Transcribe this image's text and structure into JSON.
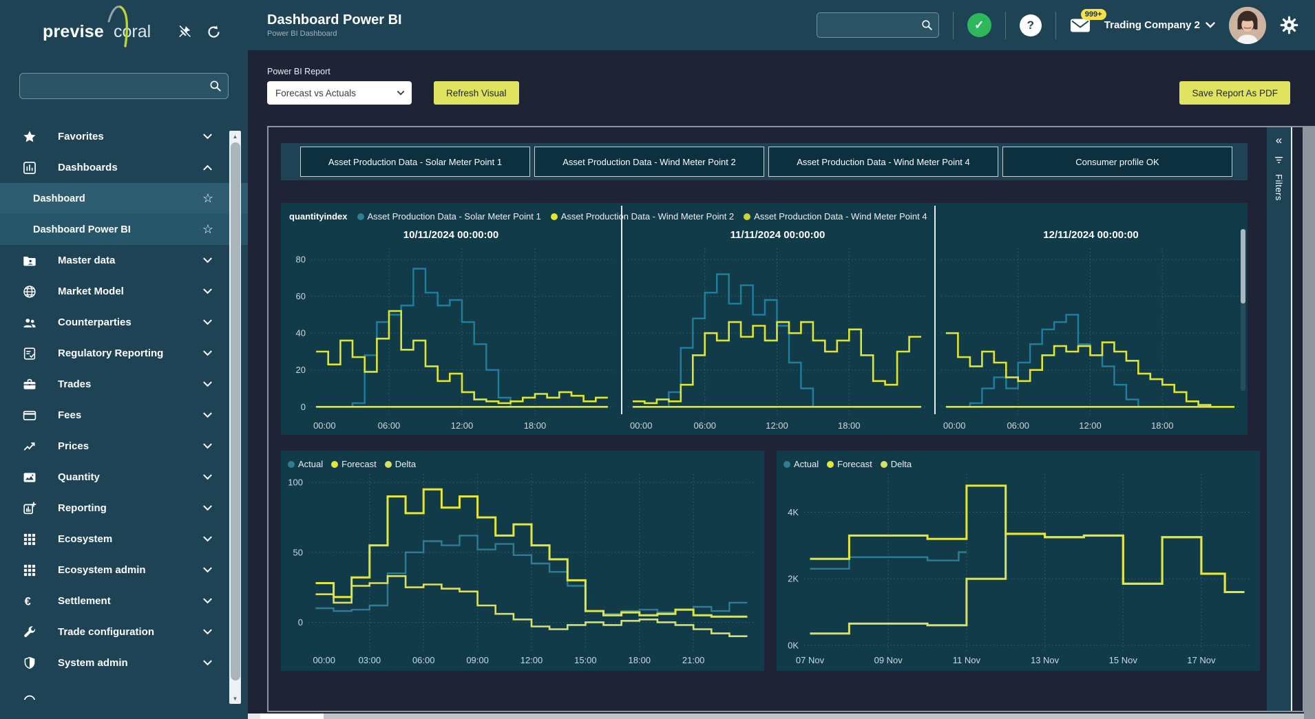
{
  "app": {
    "logo_text_1": "previse",
    "logo_text_2": "coral"
  },
  "header": {
    "title": "Dashboard Power BI",
    "subtitle": "Power BI Dashboard",
    "search_value": "",
    "company_selector": "Trading Company 2",
    "mail_badge": "999+"
  },
  "sidebar": {
    "search_value": "",
    "items": [
      {
        "label": "Favorites",
        "icon": "star",
        "state": "collapsed"
      },
      {
        "label": "Dashboards",
        "icon": "bar-chart",
        "state": "expanded"
      },
      {
        "label": "Dashboard",
        "type": "sub",
        "selected": true
      },
      {
        "label": "Dashboard Power BI",
        "type": "sub",
        "active": true
      },
      {
        "label": "Master data",
        "icon": "folder-user",
        "state": "collapsed"
      },
      {
        "label": "Market Model",
        "icon": "globe",
        "state": "collapsed"
      },
      {
        "label": "Counterparties",
        "icon": "people",
        "state": "collapsed"
      },
      {
        "label": "Regulatory Reporting",
        "icon": "doc-check",
        "state": "collapsed"
      },
      {
        "label": "Trades",
        "icon": "briefcase",
        "state": "collapsed"
      },
      {
        "label": "Fees",
        "icon": "credit-card",
        "state": "collapsed"
      },
      {
        "label": "Prices",
        "icon": "trend",
        "state": "collapsed"
      },
      {
        "label": "Quantity",
        "icon": "image-chart",
        "state": "collapsed"
      },
      {
        "label": "Reporting",
        "icon": "chart-plus",
        "state": "collapsed"
      },
      {
        "label": "Ecosystem",
        "icon": "grid",
        "state": "collapsed"
      },
      {
        "label": "Ecosystem admin",
        "icon": "grid",
        "state": "collapsed"
      },
      {
        "label": "Settlement",
        "icon": "euro",
        "state": "collapsed"
      },
      {
        "label": "Trade configuration",
        "icon": "wrench",
        "state": "collapsed"
      },
      {
        "label": "System admin",
        "icon": "shield",
        "state": "collapsed"
      }
    ]
  },
  "controls": {
    "report_picker_label": "Power BI Report",
    "report_picker_value": "Forecast vs Actuals",
    "refresh_button": "Refresh Visual",
    "save_pdf_button": "Save Report As PDF"
  },
  "report": {
    "tabs": [
      "Asset Production Data - Solar Meter Point 1",
      "Asset Production Data - Wind Meter Point 2",
      "Asset Production Data - Wind Meter Point 4",
      "Consumer profile OK"
    ],
    "filters_label": "Filters"
  },
  "chart_data": [
    {
      "type": "line",
      "name": "quantityindex",
      "legend": [
        {
          "label": "Asset Production Data - Solar Meter Point 1",
          "color": "#2e7d95"
        },
        {
          "label": "Asset Production Data - Wind Meter Point 2",
          "color": "#e0e52e"
        },
        {
          "label": "Asset Production Data - Wind Meter Point 4",
          "color": "#ccd335"
        }
      ],
      "ylim": [
        0,
        80
      ],
      "yticks": [
        0,
        20,
        40,
        60,
        80
      ],
      "xticks": [
        {
          "v": 0,
          "t": "00:00"
        },
        {
          "v": 6,
          "t": "06:00"
        },
        {
          "v": 12,
          "t": "12:00"
        },
        {
          "v": 18,
          "t": "18:00"
        }
      ],
      "panels": [
        {
          "title": "10/11/2024 00:00:00",
          "series": {
            "solar_meter_point_1": [
              0,
              0,
              0,
              2,
              28,
              46,
              50,
              55,
              75,
              62,
              55,
              58,
              46,
              34,
              20,
              5,
              0,
              0,
              0,
              0,
              0,
              0,
              0,
              0
            ],
            "wind_meter_point_2": [
              30,
              23,
              36,
              27,
              19,
              37,
              52,
              31,
              36,
              22,
              14,
              18,
              8,
              4,
              3,
              2,
              3,
              5,
              7,
              5,
              8,
              6,
              3,
              5
            ],
            "wind_meter_point_4": [
              0,
              0,
              0,
              0,
              0,
              0,
              0,
              0,
              0,
              0,
              0,
              0,
              0,
              0,
              0,
              0,
              0,
              0,
              0,
              0,
              0,
              0,
              0,
              0
            ]
          }
        },
        {
          "title": "11/11/2024 00:00:00",
          "series": {
            "solar_meter_point_1": [
              0,
              0,
              0,
              8,
              32,
              48,
              62,
              72,
              56,
              66,
              50,
              58,
              44,
              24,
              10,
              0,
              0,
              0,
              0,
              0,
              0,
              0,
              0,
              0
            ],
            "wind_meter_point_2": [
              3,
              2,
              4,
              3,
              12,
              28,
              40,
              36,
              46,
              38,
              44,
              36,
              46,
              40,
              46,
              36,
              30,
              36,
              42,
              28,
              14,
              12,
              30,
              38
            ],
            "wind_meter_point_4": [
              0,
              0,
              0,
              0,
              0,
              0,
              0,
              0,
              0,
              0,
              0,
              0,
              0,
              0,
              0,
              0,
              0,
              0,
              0,
              0,
              0,
              0,
              0,
              0
            ]
          }
        },
        {
          "title": "12/11/2024 00:00:00",
          "series": {
            "solar_meter_point_1": [
              0,
              0,
              2,
              10,
              16,
              10,
              24,
              34,
              42,
              46,
              50,
              34,
              28,
              22,
              12,
              4,
              0,
              0,
              0,
              0,
              0,
              0,
              0,
              0
            ],
            "wind_meter_point_2": [
              40,
              27,
              22,
              30,
              24,
              16,
              14,
              20,
              28,
              33,
              30,
              33,
              28,
              35,
              30,
              25,
              18,
              15,
              12,
              8,
              3,
              1,
              0,
              0
            ],
            "wind_meter_point_4": [
              0,
              0,
              0,
              0,
              0,
              0,
              0,
              0,
              0,
              0,
              0,
              0,
              0,
              0,
              0,
              0,
              0,
              0,
              0,
              0,
              0,
              0,
              0,
              0
            ]
          }
        }
      ]
    },
    {
      "type": "line",
      "legend": [
        {
          "label": "Actual",
          "color": "#2e7d95"
        },
        {
          "label": "Forecast",
          "color": "#e4e73a"
        },
        {
          "label": "Delta",
          "color": "#d9e06a"
        }
      ],
      "ylim": [
        0,
        100
      ],
      "yticks": [
        0,
        50,
        100
      ],
      "xticks": [
        {
          "v": 0,
          "t": "00:00"
        },
        {
          "v": 3,
          "t": "03:00"
        },
        {
          "v": 6,
          "t": "06:00"
        },
        {
          "v": 9,
          "t": "09:00"
        },
        {
          "v": 12,
          "t": "12:00"
        },
        {
          "v": 15,
          "t": "15:00"
        },
        {
          "v": 18,
          "t": "18:00"
        },
        {
          "v": 21,
          "t": "21:00"
        }
      ],
      "series": {
        "actual": [
          10,
          8,
          9,
          12,
          35,
          50,
          58,
          55,
          62,
          52,
          56,
          48,
          42,
          36,
          26,
          8,
          6,
          8,
          9,
          7,
          9,
          11,
          8,
          14
        ],
        "forecast": [
          28,
          18,
          32,
          55,
          90,
          78,
          95,
          82,
          90,
          75,
          62,
          70,
          55,
          45,
          30,
          8,
          5,
          7,
          5,
          6,
          9,
          5,
          4,
          4
        ],
        "delta": [
          20,
          14,
          26,
          28,
          33,
          25,
          27,
          24,
          22,
          12,
          6,
          2,
          -3,
          -5,
          -2,
          0,
          -2,
          1,
          2,
          0,
          -2,
          -5,
          -8,
          -10
        ]
      }
    },
    {
      "type": "line",
      "legend": [
        {
          "label": "Actual",
          "color": "#2e7d95"
        },
        {
          "label": "Forecast",
          "color": "#e4e73a"
        },
        {
          "label": "Delta",
          "color": "#d9e06a"
        }
      ],
      "ylim": [
        0,
        4000
      ],
      "yticks": [
        {
          "v": 0,
          "t": "0K"
        },
        {
          "v": 2000,
          "t": "2K"
        },
        {
          "v": 4000,
          "t": "4K"
        }
      ],
      "xticks": [
        {
          "v": 7,
          "t": "07 Nov"
        },
        {
          "v": 9,
          "t": "09 Nov"
        },
        {
          "v": 11,
          "t": "11 Nov"
        },
        {
          "v": 13,
          "t": "13 Nov"
        },
        {
          "v": 15,
          "t": "15 Nov"
        },
        {
          "v": 17,
          "t": "17 Nov"
        }
      ],
      "series": {
        "actual": [
          [
            7,
            2300
          ],
          [
            8,
            2650
          ],
          [
            10,
            2550
          ],
          [
            10.8,
            2800
          ]
        ],
        "forecast": [
          [
            7,
            2600
          ],
          [
            8,
            3300
          ],
          [
            10,
            3200
          ],
          [
            11,
            4800
          ],
          [
            12,
            3350
          ],
          [
            13,
            3250
          ],
          [
            14,
            3300
          ],
          [
            15,
            1850
          ],
          [
            16,
            3250
          ],
          [
            17,
            2150
          ],
          [
            17.6,
            1600
          ]
        ],
        "delta": [
          [
            7,
            350
          ],
          [
            8,
            650
          ],
          [
            10,
            600
          ],
          [
            11,
            2000
          ],
          [
            12,
            3350
          ],
          [
            13,
            3250
          ],
          [
            14,
            3300
          ],
          [
            15,
            1850
          ],
          [
            16,
            3250
          ],
          [
            17,
            2150
          ],
          [
            17.6,
            1600
          ]
        ]
      }
    }
  ],
  "colors": {
    "header_teal": "#1d4355",
    "main_bg": "#1f2336",
    "chart_bg": "#123b4a",
    "accent_yellow": "#dfe35f",
    "line_blue": "#1f7f9f",
    "line_yellow": "#e0e52e",
    "line_delta": "#d9e06a",
    "tab_bg": "#0c303d",
    "nav_selected": "#2e5d71",
    "badge_yellow": "#f2e14c",
    "status_green": "#2eb85c"
  }
}
